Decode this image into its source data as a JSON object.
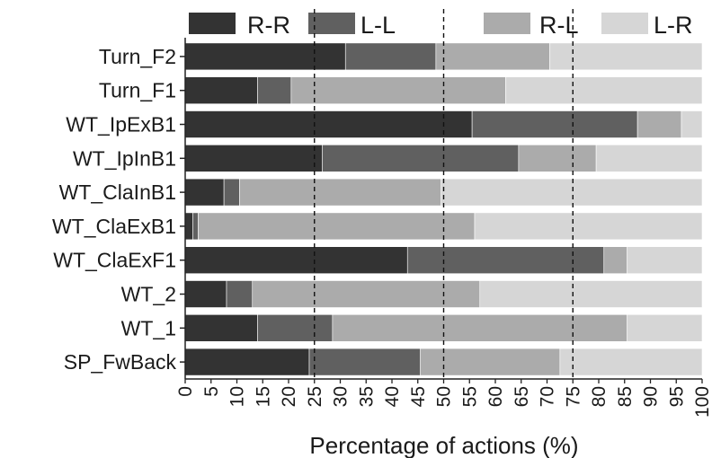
{
  "chart_data": {
    "type": "bar",
    "orientation": "horizontal",
    "stacked": true,
    "title": "",
    "xlabel": "Percentage of actions  (%)",
    "ylabel": "",
    "xlim": [
      0,
      100
    ],
    "x_ticks": [
      "0",
      "5",
      "10",
      "15",
      "20",
      "25",
      "30",
      "35",
      "40",
      "45",
      "50",
      "55",
      "60",
      "65",
      "70",
      "75",
      "80",
      "85",
      "90",
      "95",
      "100"
    ],
    "reference_lines": [
      25,
      50,
      75
    ],
    "legend_position": "top",
    "grid": false,
    "categories": [
      "Turn_F2",
      "Turn_F1",
      "WT_IpExB1",
      "WT_IpInB1",
      "WT_ClaInB1",
      "WT_ClaExB1",
      "WT_ClaExF1",
      "WT_2",
      "WT_1",
      "SP_FwBack"
    ],
    "series": [
      {
        "name": "R-R",
        "color": "#333333",
        "values": [
          31,
          14,
          55.5,
          26.5,
          7.5,
          1.5,
          43,
          8,
          14,
          24
        ]
      },
      {
        "name": "L-L",
        "color": "#606060",
        "values": [
          17.5,
          6.5,
          32,
          38,
          3,
          1,
          38,
          5,
          14.5,
          21.5
        ]
      },
      {
        "name": "R-L",
        "color": "#ababab",
        "values": [
          22,
          41.5,
          8.5,
          15,
          39,
          53.5,
          4.5,
          44,
          57,
          27
        ]
      },
      {
        "name": "L-R",
        "color": "#d6d6d6",
        "values": [
          29.5,
          38,
          4,
          20.5,
          50.5,
          44,
          14.5,
          43,
          14.5,
          27.5
        ]
      }
    ]
  }
}
